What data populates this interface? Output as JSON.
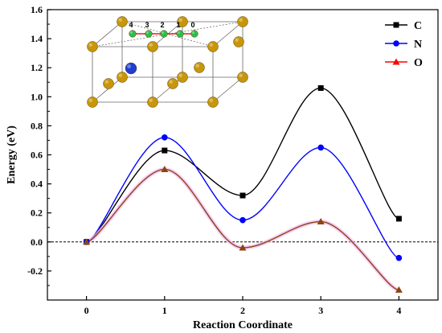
{
  "chart_data": {
    "type": "line",
    "xlabel": "Reaction Coordinate",
    "ylabel": "Energy (eV)",
    "xlim": [
      -0.5,
      4.5
    ],
    "ylim": [
      -0.4,
      1.6
    ],
    "xticks": [
      0,
      1,
      2,
      3,
      4
    ],
    "yticks": [
      -0.2,
      0.0,
      0.2,
      0.4,
      0.6,
      0.8,
      1.0,
      1.2,
      1.4,
      1.6
    ],
    "ytick_labels": [
      "-0.2",
      "0.0",
      "0.2",
      "0.4",
      "0.6",
      "0.8",
      "1.0",
      "1.2",
      "1.4",
      "1.6"
    ],
    "reference_line": {
      "y": 0.0,
      "style": "dashed",
      "color": "#000000"
    },
    "legend_position": "top-right",
    "grid": false,
    "x": [
      0,
      1,
      2,
      3,
      4
    ],
    "series": [
      {
        "name": "C",
        "values": [
          0.0,
          0.63,
          0.32,
          1.06,
          0.16
        ],
        "color": "#000000",
        "marker": "square"
      },
      {
        "name": "N",
        "values": [
          0.0,
          0.72,
          0.15,
          0.65,
          -0.11
        ],
        "color": "#0000ff",
        "marker": "circle"
      },
      {
        "name": "O",
        "values": [
          0.0,
          0.5,
          -0.04,
          0.14,
          -0.33
        ],
        "color": "#ff0000",
        "line_color": "#8b4513",
        "marker": "triangle"
      }
    ],
    "inset": {
      "site_labels": [
        "4",
        "3",
        "2",
        "1",
        "0"
      ],
      "atom_colors": {
        "host": "#c8960a",
        "migrating": "#2bbf4a",
        "interstitial": "#1f3fd0"
      }
    }
  }
}
